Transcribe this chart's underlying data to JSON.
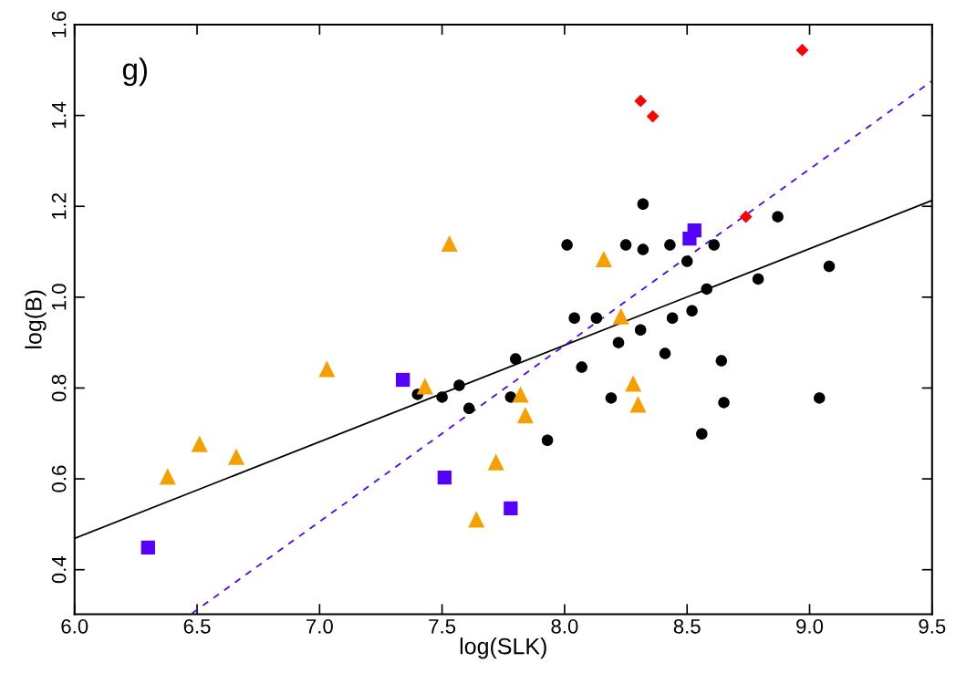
{
  "chart_data": {
    "type": "scatter",
    "xlabel": "log(SLK)",
    "ylabel": "log(B)",
    "annotations": [
      "g)"
    ],
    "xlim": [
      6.0,
      9.5
    ],
    "ylim": [
      0.302,
      1.6
    ],
    "xticks": [
      {
        "value": 6,
        "label": "6.0"
      },
      6.5,
      {
        "value": 7,
        "label": "7.0"
      },
      7.5,
      {
        "value": 8,
        "label": "8.0"
      },
      8.5,
      {
        "value": 9,
        "label": "9.0"
      },
      9.5
    ],
    "yticks": [
      0.4,
      0.6,
      0.8,
      {
        "value": 1,
        "label": "1.0"
      },
      1.2,
      1.4,
      1.6
    ],
    "grid": false,
    "legend": false,
    "series": [
      {
        "marker": "circle",
        "color": "#000000",
        "x": [
          7.4,
          7.5,
          7.57,
          7.61,
          7.78,
          7.8,
          7.93,
          8.01,
          8.04,
          8.07,
          8.13,
          8.19,
          8.22,
          8.25,
          8.31,
          8.32,
          8.32,
          8.41,
          8.43,
          8.44,
          8.5,
          8.52,
          8.56,
          8.58,
          8.61,
          8.64,
          8.65,
          8.79,
          8.87,
          9.04,
          9.08
        ],
        "values": [
          0.786,
          0.78,
          0.806,
          0.755,
          0.78,
          0.864,
          0.685,
          1.115,
          0.954,
          0.846,
          0.954,
          0.778,
          0.9,
          1.115,
          0.928,
          1.105,
          1.205,
          0.876,
          1.115,
          0.954,
          1.079,
          0.97,
          0.699,
          1.018,
          1.115,
          0.86,
          0.768,
          1.04,
          1.177,
          0.778,
          1.068
        ]
      },
      {
        "marker": "triangle",
        "color": "#f5a000",
        "x": [
          6.38,
          6.51,
          6.66,
          7.03,
          7.43,
          7.53,
          7.64,
          7.72,
          7.82,
          7.84,
          8.16,
          8.23,
          8.28,
          8.3
        ],
        "values": [
          0.605,
          0.677,
          0.649,
          0.842,
          0.804,
          1.118,
          0.511,
          0.637,
          0.786,
          0.74,
          1.084,
          0.958,
          0.81,
          0.764
        ]
      },
      {
        "marker": "square",
        "color": "#5500ff",
        "x": [
          6.3,
          7.34,
          7.51,
          7.78,
          8.51,
          8.53
        ],
        "values": [
          0.449,
          0.818,
          0.603,
          0.535,
          1.129,
          1.147
        ]
      },
      {
        "marker": "diamond",
        "color": "#ff0000",
        "x": [
          8.31,
          8.36,
          8.74,
          8.97
        ],
        "values": [
          1.432,
          1.398,
          1.177,
          1.544
        ]
      },
      {
        "type": "line",
        "line_style": "solid",
        "color": "#000000",
        "x": [
          6.0,
          9.5
        ],
        "values": [
          0.469,
          1.213
        ]
      },
      {
        "type": "line",
        "line_style": "dashed",
        "color": "#5500ff",
        "x": [
          6.48,
          9.5
        ],
        "values": [
          0.304,
          1.476
        ]
      }
    ]
  }
}
